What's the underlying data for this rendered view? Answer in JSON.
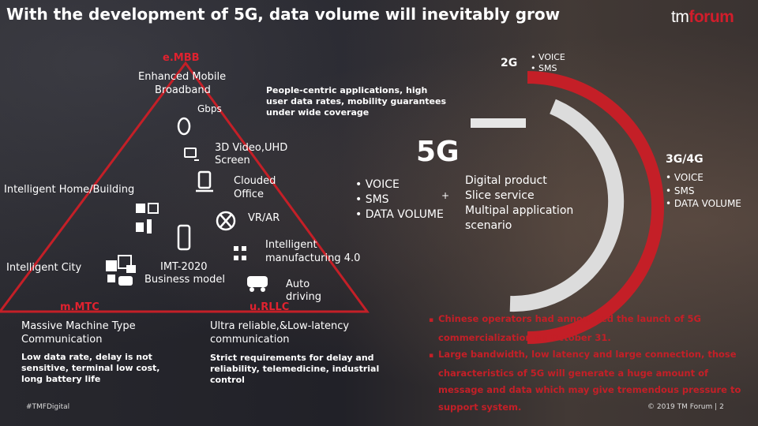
{
  "title": "With the development of 5G, data volume will inevitably grow",
  "logo": {
    "tm": "tm",
    "forum": "forum"
  },
  "embb": {
    "heading": "e.MBB",
    "line1": "Enhanced Mobile",
    "line2": "Broadband",
    "gbps": "Gbps",
    "desc1": "People-centric applications, high",
    "desc2": "user data rates, mobility guarantees",
    "desc3": "under wide coverage"
  },
  "apps": {
    "video1": "3D Video,UHD",
    "video2": "Screen",
    "home": "Intelligent Home/Building",
    "cloud1": "Clouded",
    "cloud2": "Office",
    "vr": "VR/AR",
    "city": "Intelligent City",
    "imt1": "IMT-2020",
    "imt2": "Business model",
    "manu1": "Intelligent",
    "manu2": "manufacturing 4.0",
    "auto1": "Auto",
    "auto2": "driving"
  },
  "mmtc": {
    "heading": "m.MTC",
    "line1": "Massive Machine Type",
    "line2": "Communication",
    "desc1": "Low data rate, delay is not",
    "desc2": "sensitive, terminal low cost,",
    "desc3": "long battery life"
  },
  "urllc": {
    "heading": "u.RLLC",
    "line1": "Ultra reliable,&Low-latency",
    "line2": "communication",
    "desc1": "Strict requirements for delay and",
    "desc2": "reliability, telemedicine, industrial",
    "desc3": "control"
  },
  "g2": {
    "label": "2G",
    "items": [
      "VOICE",
      "SMS"
    ]
  },
  "g5": {
    "label": "5G",
    "items": [
      "VOICE",
      "SMS",
      "DATA VOLUME"
    ],
    "plus": "+",
    "extra": [
      "Digital product",
      "Slice service",
      "Multipal application",
      "scenario"
    ]
  },
  "g34": {
    "label": "3G/4G",
    "items": [
      "VOICE",
      "SMS",
      "DATA VOLUME"
    ]
  },
  "notes": [
    "Chinese operators had announced the launch of 5G commercialization on October 31.",
    "Large bandwidth, low latency and large connection, those characteristics of 5G will generate a huge amount of message and data which may give tremendous pressure to support system."
  ],
  "footer": {
    "hashtag": "#TMFDigital",
    "copyright": "© 2019 TM Forum |",
    "page": "2"
  },
  "colors": {
    "accent": "#e0222f",
    "arc_gray": "#d9d9d9"
  }
}
